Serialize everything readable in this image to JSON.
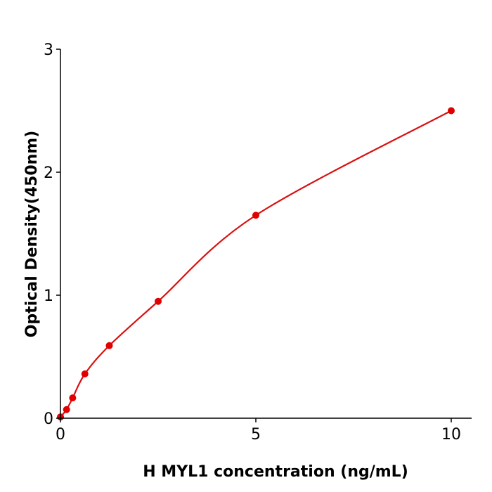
{
  "chart_data": {
    "type": "scatter",
    "title": "",
    "xlabel": "H  MYL1 concentration (ng/mL)",
    "ylabel": "Optical Density(450nm)",
    "xlim": [
      0,
      10.5
    ],
    "ylim": [
      0,
      3
    ],
    "xticks": [
      "0",
      "5",
      "10"
    ],
    "xtick_values": [
      0,
      5,
      10
    ],
    "yticks": [
      "0",
      "1",
      "2",
      "3"
    ],
    "ytick_values": [
      0,
      1,
      2,
      3
    ],
    "grid": false,
    "color": "#e00000",
    "line_color": "#d81010",
    "series": [
      {
        "x": [
          0,
          0.156,
          0.3125,
          0.625,
          1.25,
          2.5,
          5,
          10
        ],
        "y": [
          0.01,
          0.07,
          0.165,
          0.36,
          0.59,
          0.95,
          1.65,
          2.5
        ],
        "fit": "smooth standard curve"
      }
    ]
  }
}
